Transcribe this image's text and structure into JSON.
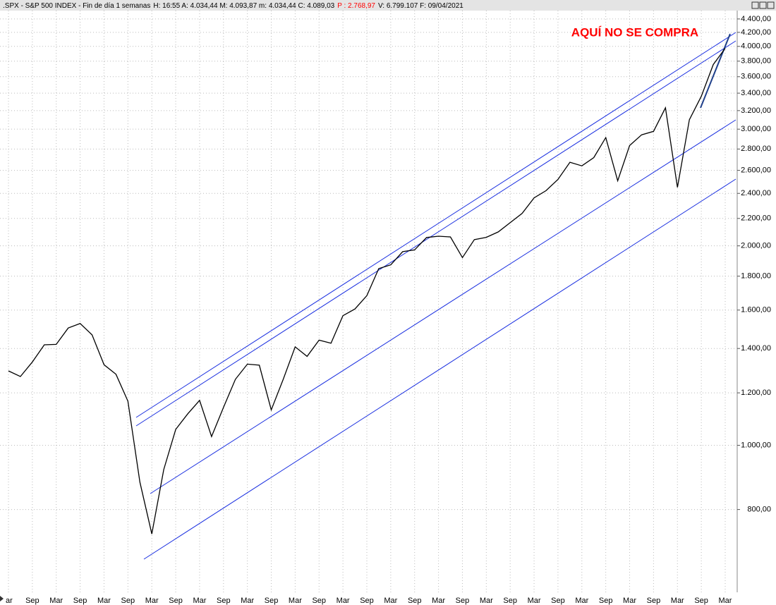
{
  "chart_data": {
    "type": "line",
    "title": ".SPX - S&P 500 INDEX - Fin de día 1 semanas",
    "info": "H: 16:55  A: 4.034,44  M: 4.093,87  m: 4.034,44  C: 4.089,03",
    "info_highlight": "P : 2.768,97",
    "info_tail": "V: 6.799.107  F: 09/04/2021",
    "annotation": "AQUÍ NO SE COMPRA",
    "color": "#000000",
    "highlight_color": "#ff0000",
    "log_scale": true,
    "grid": true,
    "categories": [
      "ar",
      null,
      "Sep",
      null,
      "Mar",
      null,
      "Sep",
      null,
      "Mar",
      null,
      "Sep",
      null,
      "Mar",
      null,
      "Sep",
      null,
      "Mar",
      null,
      "Sep",
      null,
      "Mar",
      null,
      "Sep",
      null,
      "Mar",
      null,
      "Sep",
      null,
      "Mar",
      null,
      "Sep",
      null,
      "Mar",
      null,
      "Sep",
      null,
      "Mar",
      null,
      "Sep",
      null,
      "Mar",
      null,
      "Sep",
      null,
      "Mar",
      null,
      "Sep",
      null,
      "Mar",
      null,
      "Sep",
      null,
      "Mar",
      null,
      "Sep",
      null,
      "Mar",
      null,
      "Sep",
      null,
      "Mar"
    ],
    "values": [
      1295,
      1270,
      1336,
      1418,
      1420,
      1503,
      1527,
      1468,
      1323,
      1280,
      1166,
      880,
      735,
      919,
      1057,
      1115,
      1169,
      1031,
      1141,
      1258,
      1326,
      1321,
      1131,
      1258,
      1408,
      1362,
      1441,
      1426,
      1569,
      1606,
      1682,
      1848,
      1872,
      1960,
      1972,
      2059,
      2068,
      2063,
      1920,
      2044,
      2060,
      2099,
      2168,
      2239,
      2363,
      2423,
      2519,
      2674,
      2641,
      2718,
      2914,
      2507,
      2834,
      2942,
      2977,
      3231,
      2450,
      3100,
      3363,
      3756,
      3973
    ],
    "ylim": [
      600,
      4530
    ],
    "yticks": [
      {
        "value": 800,
        "label": "800,00"
      },
      {
        "value": 1000,
        "label": "1.000,00"
      },
      {
        "value": 1200,
        "label": "1.200,00"
      },
      {
        "value": 1400,
        "label": "1.400,00"
      },
      {
        "value": 1600,
        "label": "1.600,00"
      },
      {
        "value": 1800,
        "label": "1.800,00"
      },
      {
        "value": 2000,
        "label": "2.000,00"
      },
      {
        "value": 2200,
        "label": "2.200,00"
      },
      {
        "value": 2400,
        "label": "2.400,00"
      },
      {
        "value": 2600,
        "label": "2.600,00"
      },
      {
        "value": 2800,
        "label": "2.800,00"
      },
      {
        "value": 3000,
        "label": "3.000,00"
      },
      {
        "value": 3200,
        "label": "3.200,00"
      },
      {
        "value": 3400,
        "label": "3.400,00"
      },
      {
        "value": 3600,
        "label": "3.600,00"
      },
      {
        "value": 3800,
        "label": "3.800,00"
      },
      {
        "value": 4000,
        "label": "4.000,00"
      },
      {
        "value": 4200,
        "label": "4.200,00"
      },
      {
        "value": 4400,
        "label": "4.400,00"
      }
    ]
  }
}
